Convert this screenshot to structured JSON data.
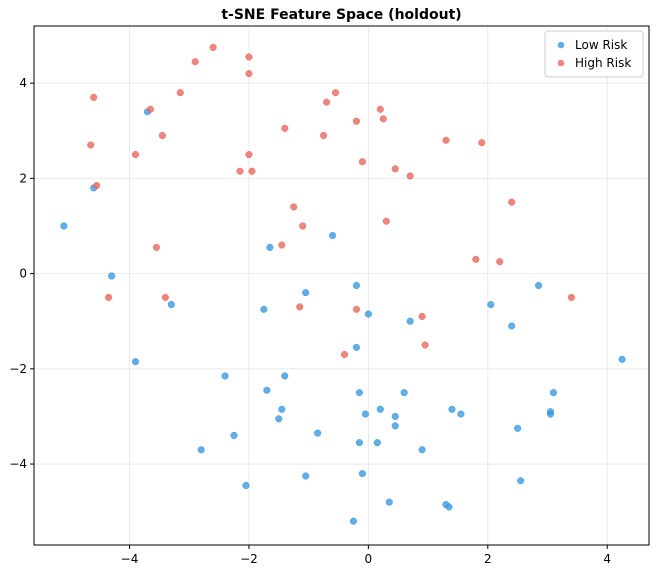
{
  "chart_data": {
    "type": "scatter",
    "title": "t-SNE Feature Space (holdout)",
    "xlabel": "",
    "ylabel": "",
    "xlim": [
      -5.6,
      4.7
    ],
    "ylim": [
      -5.7,
      5.2
    ],
    "xticks": [
      -4,
      -2,
      0,
      2,
      4
    ],
    "yticks": [
      -4,
      -2,
      0,
      2,
      4
    ],
    "grid": true,
    "legend_position": "top-right",
    "series": [
      {
        "name": "Low Risk",
        "color": "#3b9ae1",
        "points": [
          [
            -5.1,
            1.0
          ],
          [
            -3.7,
            3.4
          ],
          [
            -4.6,
            1.8
          ],
          [
            -4.3,
            -0.05
          ],
          [
            -3.9,
            -1.85
          ],
          [
            -3.3,
            -0.65
          ],
          [
            -1.65,
            0.55
          ],
          [
            -0.6,
            0.8
          ],
          [
            -1.05,
            -0.4
          ],
          [
            -1.75,
            -0.75
          ],
          [
            -0.2,
            -0.25
          ],
          [
            0.0,
            -0.85
          ],
          [
            0.7,
            -1.0
          ],
          [
            -0.2,
            -1.55
          ],
          [
            -2.4,
            -2.15
          ],
          [
            -1.4,
            -2.15
          ],
          [
            -1.7,
            -2.45
          ],
          [
            -0.15,
            -2.5
          ],
          [
            0.6,
            -2.5
          ],
          [
            -1.45,
            -2.85
          ],
          [
            -1.5,
            -3.05
          ],
          [
            -0.05,
            -2.95
          ],
          [
            0.2,
            -2.85
          ],
          [
            0.45,
            -3.0
          ],
          [
            0.45,
            -3.2
          ],
          [
            -2.25,
            -3.4
          ],
          [
            -0.85,
            -3.35
          ],
          [
            -0.15,
            -3.55
          ],
          [
            0.15,
            -3.55
          ],
          [
            -2.8,
            -3.7
          ],
          [
            0.9,
            -3.7
          ],
          [
            1.4,
            -2.85
          ],
          [
            1.55,
            -2.95
          ],
          [
            2.5,
            -3.25
          ],
          [
            3.05,
            -2.9
          ],
          [
            3.1,
            -2.5
          ],
          [
            -2.05,
            -4.45
          ],
          [
            -1.05,
            -4.25
          ],
          [
            -0.1,
            -4.2
          ],
          [
            2.55,
            -4.35
          ],
          [
            0.35,
            -4.8
          ],
          [
            1.3,
            -4.85
          ],
          [
            1.35,
            -4.9
          ],
          [
            -0.25,
            -5.2
          ],
          [
            2.05,
            -0.65
          ],
          [
            2.4,
            -1.1
          ],
          [
            2.85,
            -0.25
          ],
          [
            4.25,
            -1.8
          ],
          [
            3.05,
            -2.95
          ]
        ]
      },
      {
        "name": "High Risk",
        "color": "#e8695c",
        "points": [
          [
            -2.6,
            4.75
          ],
          [
            -2.0,
            4.55
          ],
          [
            -2.0,
            4.2
          ],
          [
            -2.9,
            4.45
          ],
          [
            -3.15,
            3.8
          ],
          [
            -4.6,
            3.7
          ],
          [
            -3.65,
            3.45
          ],
          [
            -3.45,
            2.9
          ],
          [
            -4.65,
            2.7
          ],
          [
            -3.9,
            2.5
          ],
          [
            -2.0,
            2.5
          ],
          [
            -1.95,
            2.15
          ],
          [
            -2.15,
            2.15
          ],
          [
            -1.4,
            3.05
          ],
          [
            -0.55,
            3.8
          ],
          [
            -0.7,
            3.6
          ],
          [
            -0.75,
            2.9
          ],
          [
            -0.2,
            3.2
          ],
          [
            0.2,
            3.45
          ],
          [
            0.25,
            3.25
          ],
          [
            -0.1,
            2.35
          ],
          [
            0.45,
            2.2
          ],
          [
            0.7,
            2.05
          ],
          [
            1.3,
            2.8
          ],
          [
            1.9,
            2.75
          ],
          [
            -4.55,
            1.85
          ],
          [
            -3.55,
            0.55
          ],
          [
            -1.25,
            1.4
          ],
          [
            -1.1,
            1.0
          ],
          [
            -1.45,
            0.6
          ],
          [
            0.3,
            1.1
          ],
          [
            2.4,
            1.5
          ],
          [
            1.8,
            0.3
          ],
          [
            2.2,
            0.25
          ],
          [
            -4.35,
            -0.5
          ],
          [
            -3.4,
            -0.5
          ],
          [
            -1.15,
            -0.7
          ],
          [
            -0.2,
            -0.75
          ],
          [
            0.9,
            -0.9
          ],
          [
            3.4,
            -0.5
          ],
          [
            -0.4,
            -1.7
          ],
          [
            0.95,
            -1.5
          ]
        ]
      }
    ]
  }
}
